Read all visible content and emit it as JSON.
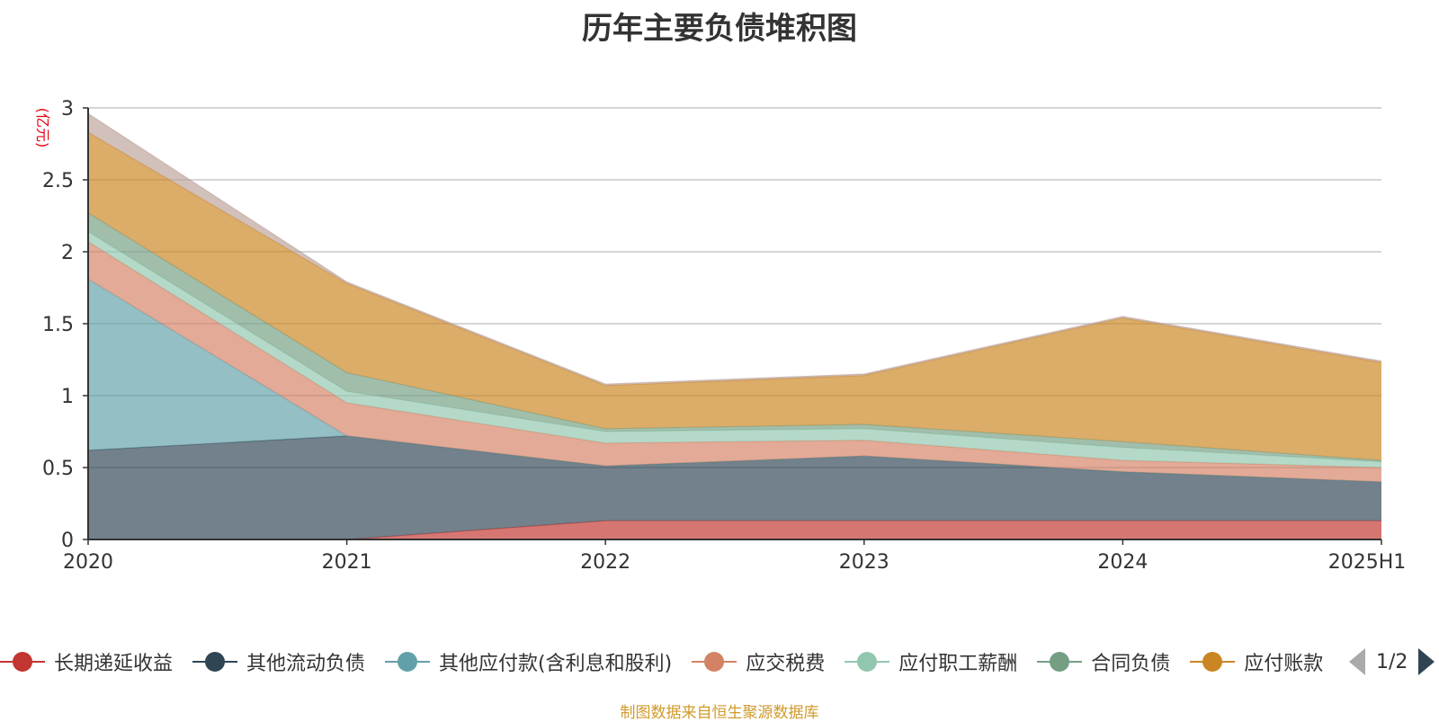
{
  "chart_data": {
    "type": "area",
    "stacked": true,
    "title": "历年主要负债堆积图",
    "ylabel": "(亿元)",
    "xlabel": "",
    "categories": [
      "2020",
      "2021",
      "2022",
      "2023",
      "2024",
      "2025H1"
    ],
    "ylim": [
      0,
      3
    ],
    "yticks": [
      "0",
      "0.5",
      "1",
      "1.5",
      "2",
      "2.5",
      "3"
    ],
    "grid": true,
    "legend_position": "bottom",
    "series": [
      {
        "name": "长期递延收益",
        "color": "#c23531",
        "values": [
          0,
          0,
          0.13,
          0.13,
          0.13,
          0.13
        ]
      },
      {
        "name": "其他流动负债",
        "color": "#2f4554",
        "values": [
          0.62,
          0.72,
          0.38,
          0.45,
          0.34,
          0.27
        ]
      },
      {
        "name": "其他应付款(含利息和股利)",
        "color": "#61a0a8",
        "values": [
          1.19,
          0,
          0,
          0,
          0,
          0
        ]
      },
      {
        "name": "应交税费",
        "color": "#d48265",
        "values": [
          0.26,
          0.23,
          0.16,
          0.11,
          0.08,
          0.1
        ]
      },
      {
        "name": "应付职工薪酬",
        "color": "#91c7ae",
        "values": [
          0.07,
          0.08,
          0.08,
          0.08,
          0.09,
          0.04
        ]
      },
      {
        "name": "合同负债",
        "color": "#749f83",
        "values": [
          0.13,
          0.13,
          0.02,
          0.03,
          0.04,
          0.01
        ]
      },
      {
        "name": "应付账款",
        "color": "#ca8622",
        "values": [
          0.56,
          0.62,
          0.3,
          0.34,
          0.86,
          0.68
        ]
      },
      {
        "name": "",
        "color": "#bda29a",
        "values": [
          0.13,
          0.01,
          0.01,
          0.01,
          0.01,
          0.01
        ]
      }
    ]
  },
  "legend": {
    "visible_items": [
      "长期递延收益",
      "其他流动负债",
      "其他应付款(含利息和股利)",
      "应交税费",
      "应付职工薪酬",
      "合同负债",
      "应付账款"
    ],
    "page": "1/2"
  },
  "footer": "制图数据来自恒生聚源数据库"
}
